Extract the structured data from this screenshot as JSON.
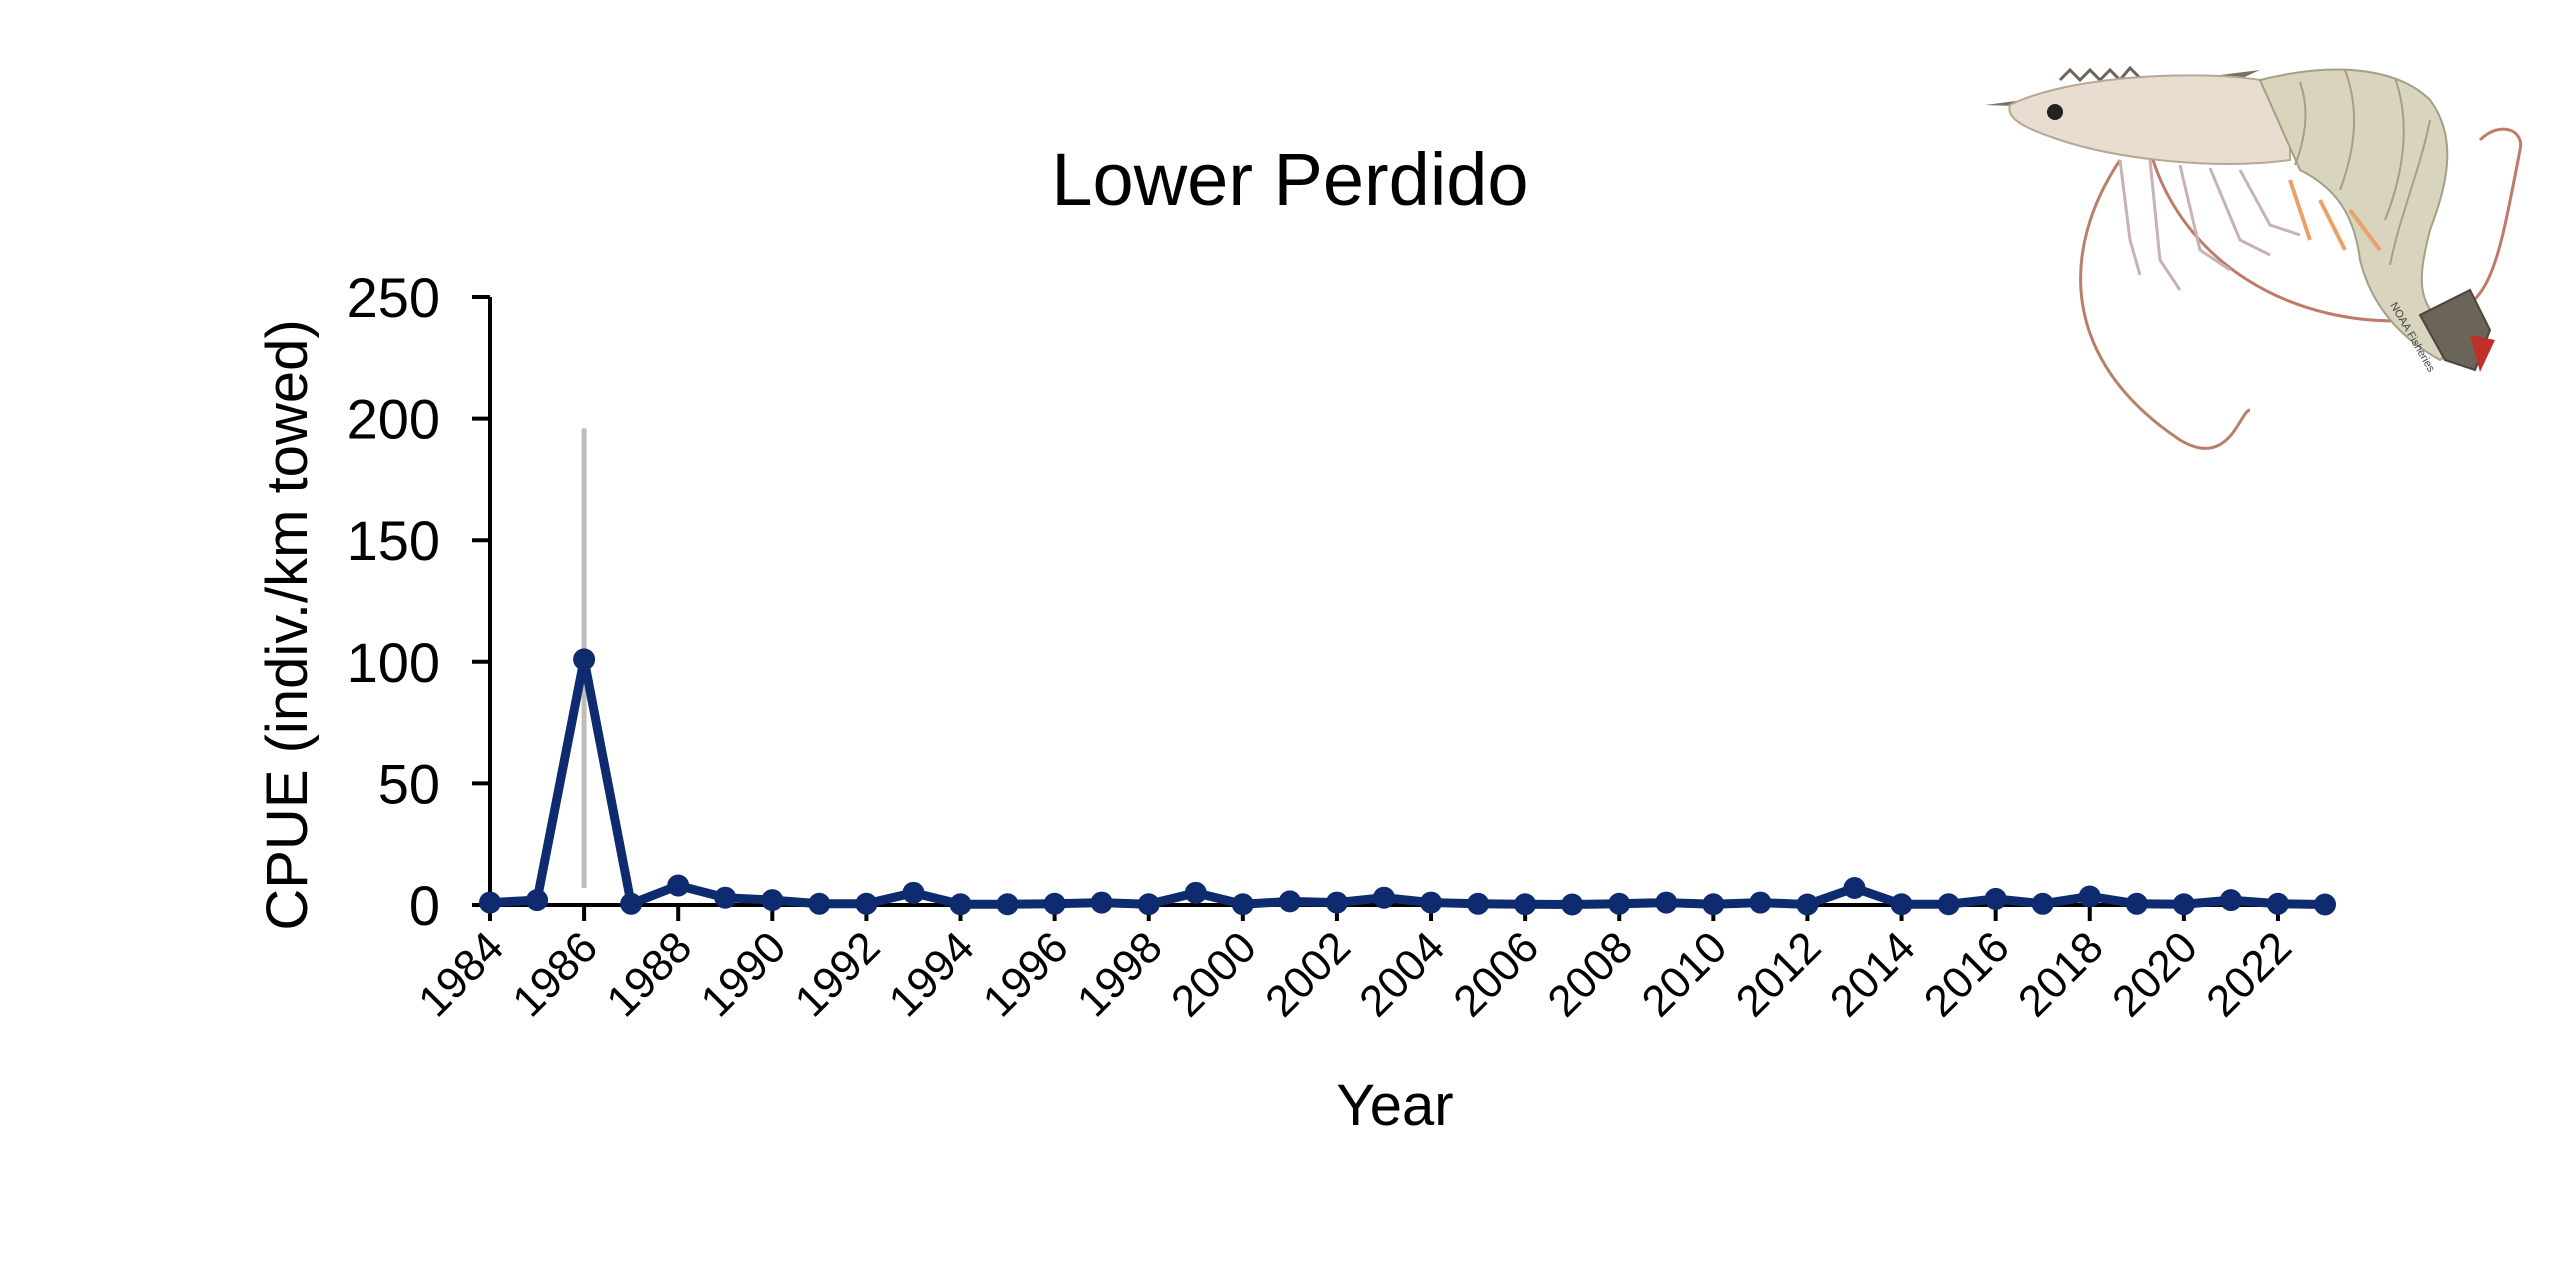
{
  "chart_data": {
    "type": "line",
    "title": "Lower Perdido",
    "xlabel": "Year",
    "ylabel": "CPUE (indiv./km towed)",
    "ylim": [
      0,
      250
    ],
    "yticks": [
      0,
      50,
      100,
      150,
      200,
      250
    ],
    "xticks": [
      "1984",
      "1986",
      "1988",
      "1990",
      "1992",
      "1994",
      "1996",
      "1998",
      "2000",
      "2002",
      "2004",
      "2006",
      "2008",
      "2010",
      "2012",
      "2014",
      "2016",
      "2018",
      "2020",
      "2022"
    ],
    "grid": false,
    "colors": {
      "line": "#0d2b6e",
      "error_bar": "#bdbdbd",
      "axis": "#000000"
    },
    "series": [
      {
        "x": [
          1984,
          1985,
          1986,
          1987,
          1988,
          1989,
          1990,
          1991,
          1992,
          1993,
          1994,
          1995,
          1996,
          1997,
          1998,
          1999,
          2000,
          2001,
          2002,
          2003,
          2004,
          2005,
          2006,
          2007,
          2008,
          2009,
          2010,
          2011,
          2012,
          2013,
          2014,
          2015,
          2016,
          2017,
          2018,
          2019,
          2020,
          2021,
          2022,
          2023
        ],
        "values": [
          1,
          2,
          101,
          0.5,
          8,
          3,
          2,
          0.5,
          0.5,
          5,
          0.3,
          0.3,
          0.5,
          1,
          0.3,
          5,
          0.3,
          1.5,
          1,
          3,
          1,
          0.5,
          0.3,
          0.2,
          0.5,
          1,
          0.3,
          1,
          0.2,
          7,
          0.3,
          0.3,
          2.5,
          0.5,
          3.5,
          0.5,
          0.3,
          2,
          0.5,
          0.2
        ],
        "error_bars": [
          {
            "x": 1986,
            "low": 7,
            "high": 196
          }
        ]
      }
    ]
  },
  "image": {
    "icon": "shrimp-illustration",
    "credit": "NOAA Fisheries"
  }
}
